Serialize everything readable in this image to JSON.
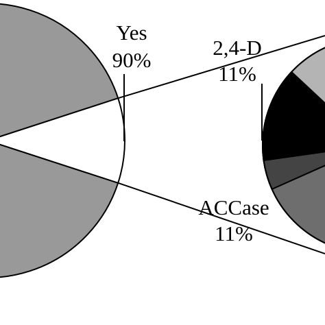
{
  "chart_data": [
    {
      "type": "pie",
      "title": "",
      "slices": [
        {
          "label": "Yes",
          "value": 90,
          "value_label": "90%",
          "color": "#999999"
        },
        {
          "label": "",
          "value": 10,
          "value_label": "",
          "color": "#ffffff"
        }
      ]
    },
    {
      "type": "pie",
      "title": "",
      "note": "secondary breakdown pie, cropped at right edge; only two slices are labeled",
      "slices": [
        {
          "label": "2,4-D",
          "value": 11,
          "value_label": "11%",
          "color": "#dedede"
        },
        {
          "label": "",
          "value_label": "",
          "color": "#b4b4b4"
        },
        {
          "label": "ACCase",
          "value": 11,
          "value_label": "11%",
          "color": "#6e6e6e"
        },
        {
          "label": "",
          "value_label": "",
          "color": "#444444"
        },
        {
          "label": "",
          "value_label": "",
          "color": "#000000"
        }
      ]
    }
  ]
}
